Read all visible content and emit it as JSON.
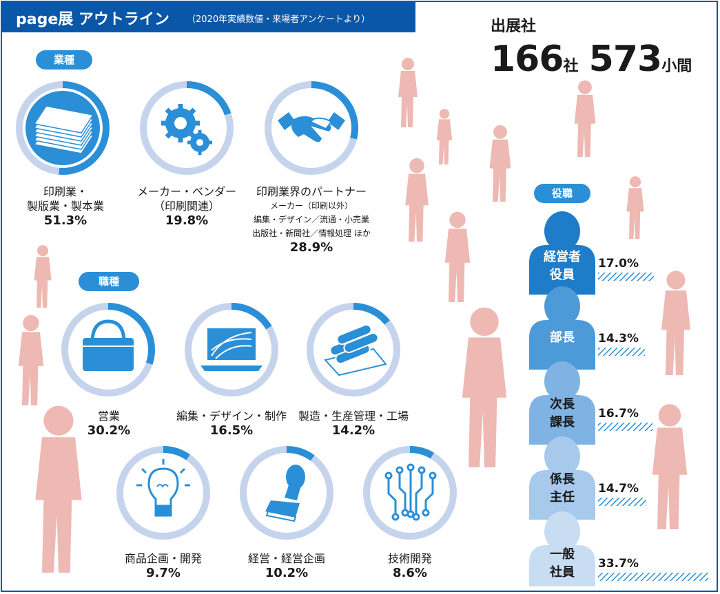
{
  "header": {
    "title": "page展 アウトライン",
    "subtitle": "（2020年実績数値・来場者アンケートより）"
  },
  "exhibitors": {
    "caption": "出展社",
    "companies": "166",
    "companies_unit": "社",
    "booths": "573",
    "booths_unit": "小間"
  },
  "industry": {
    "heading": "業種",
    "items": [
      {
        "icon": "paper-stack-icon",
        "line1": "印刷業・",
        "line2": "製版業・製本業",
        "percent": "51.3%",
        "value": 51.3
      },
      {
        "icon": "gears-icon",
        "line1": "メーカー・ベンダー",
        "line2": "（印刷関連）",
        "percent": "19.8%",
        "value": 19.8
      },
      {
        "icon": "handshake-icon",
        "line1": "印刷業界のパートナー",
        "sub1": "メーカー（印刷以外）",
        "sub2": "編集・デザイン／流通・小売業",
        "sub3": "出版社・新聞社／情報処理 ほか",
        "percent": "28.9%",
        "value": 28.9
      }
    ]
  },
  "job": {
    "heading": "職種",
    "items": [
      {
        "icon": "briefcase-icon",
        "label": "営業",
        "percent": "30.2%",
        "value": 30.2
      },
      {
        "icon": "laptop-icon",
        "label": "編集・デザイン・制作",
        "percent": "16.5%",
        "value": 16.5
      },
      {
        "icon": "paper-rolls-icon",
        "label": "製造・生産管理・工場",
        "percent": "14.2%",
        "value": 14.2
      },
      {
        "icon": "lightbulb-icon",
        "label": "商品企画・開発",
        "percent": "9.7%",
        "value": 9.7
      },
      {
        "icon": "stamp-icon",
        "label": "経営・経営企画",
        "percent": "10.2%",
        "value": 10.2
      },
      {
        "icon": "circuit-icon",
        "label": "技術開発",
        "percent": "8.6%",
        "value": 8.6
      }
    ]
  },
  "position": {
    "heading": "役職",
    "items": [
      {
        "line1": "経営者",
        "line2": "役員",
        "percent": "17.0%",
        "value": 17.0,
        "color": "#1e7cc8"
      },
      {
        "line1": "部長",
        "line2": "",
        "percent": "14.3%",
        "value": 14.3,
        "color": "#4d9ad8"
      },
      {
        "line1": "次長",
        "line2": "課長",
        "percent": "16.7%",
        "value": 16.7,
        "color": "#7fb3e3"
      },
      {
        "line1": "係長",
        "line2": "主任",
        "percent": "14.7%",
        "value": 14.7,
        "color": "#a6c9ec"
      },
      {
        "line1": "一般",
        "line2": "社員",
        "percent": "33.7%",
        "value": 33.7,
        "color": "#c9ddf2"
      }
    ]
  },
  "colors": {
    "brand": "#0a57a8",
    "accent": "#2a8fd6",
    "ring_track": "#c5d4ec",
    "silhouette": "#eeb8b3"
  }
}
